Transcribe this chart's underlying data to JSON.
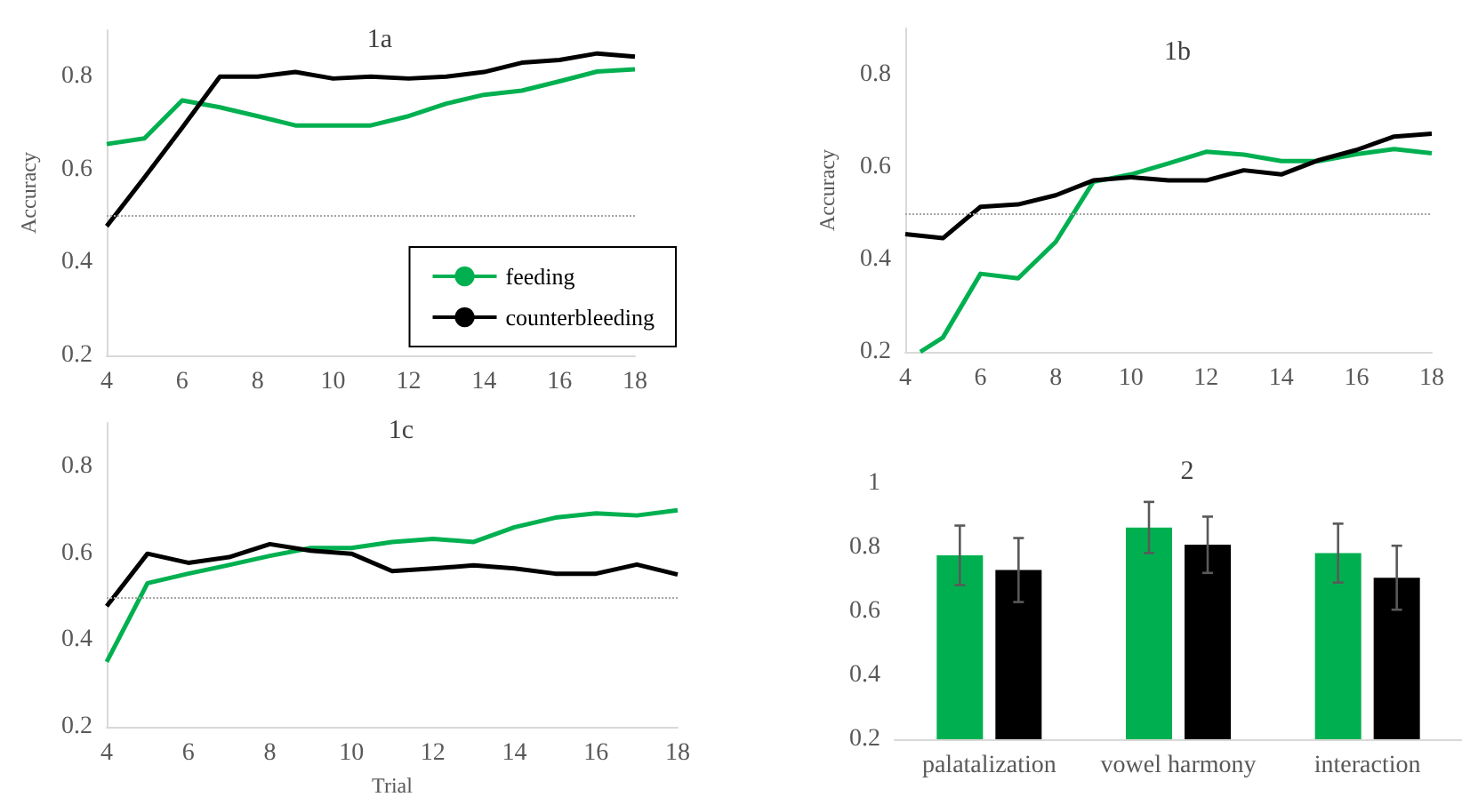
{
  "chart_data": [
    {
      "type": "line",
      "title": "1a",
      "ylabel": "Accuracy",
      "x": [
        4,
        5,
        6,
        7,
        8,
        9,
        10,
        11,
        12,
        13,
        14,
        15,
        16,
        17,
        18
      ],
      "xlim": [
        4,
        18
      ],
      "xticks": [
        4,
        6,
        8,
        10,
        12,
        14,
        16,
        18
      ],
      "ylim": [
        0.2,
        0.9
      ],
      "yticks": [
        0.2,
        0.4,
        0.6,
        0.8
      ],
      "grid": false,
      "legend": "bottom right",
      "marker": "none",
      "line_style": "solid",
      "ref_lines": [
        {
          "axis": "y",
          "value": 0.5,
          "color": "#a6a6a6",
          "line_style": "dotted"
        }
      ],
      "series": [
        {
          "name": "feeding",
          "color": "#00b050",
          "values": [
            0.655,
            0.667,
            0.749,
            0.734,
            0.715,
            0.695,
            0.695,
            0.695,
            0.715,
            0.742,
            0.761,
            0.77,
            0.79,
            0.811,
            0.816
          ]
        },
        {
          "name": "counterbleeding",
          "color": "#000000",
          "values": [
            0.478,
            0.583,
            0.69,
            0.8,
            0.8,
            0.81,
            0.796,
            0.8,
            0.796,
            0.8,
            0.81,
            0.83,
            0.836,
            0.85,
            0.843
          ]
        }
      ]
    },
    {
      "type": "line",
      "title": "1b",
      "ylabel": "Accuracy",
      "x": [
        4,
        5,
        6,
        7,
        8,
        9,
        10,
        11,
        12,
        13,
        14,
        15,
        16,
        17,
        18
      ],
      "xlim": [
        4,
        18
      ],
      "xticks": [
        4,
        6,
        8,
        10,
        12,
        14,
        16,
        18
      ],
      "ylim": [
        0.2,
        0.9
      ],
      "yticks": [
        0.2,
        0.4,
        0.6,
        0.8
      ],
      "grid": false,
      "marker": "none",
      "line_style": "solid",
      "ref_lines": [
        {
          "axis": "y",
          "value": 0.5,
          "color": "#a6a6a6",
          "line_style": "dotted"
        }
      ],
      "series": [
        {
          "color": "#00b050",
          "x": [
            4.4,
            5,
            6,
            7,
            8,
            9,
            10,
            11,
            12,
            13,
            14,
            15,
            16,
            17,
            18
          ],
          "values": [
            0.2,
            0.231,
            0.369,
            0.359,
            0.438,
            0.568,
            0.584,
            0.608,
            0.633,
            0.627,
            0.613,
            0.613,
            0.628,
            0.639,
            0.63
          ]
        },
        {
          "color": "#000000",
          "values": [
            0.455,
            0.446,
            0.514,
            0.519,
            0.539,
            0.571,
            0.578,
            0.571,
            0.571,
            0.593,
            0.584,
            0.615,
            0.637,
            0.666,
            0.672
          ]
        }
      ]
    },
    {
      "type": "line",
      "title": "1c",
      "xlabel": "Trial",
      "x": [
        4,
        5,
        6,
        7,
        8,
        9,
        10,
        11,
        12,
        13,
        14,
        15,
        16,
        17,
        18
      ],
      "xlim": [
        4,
        18
      ],
      "xticks": [
        4,
        6,
        8,
        10,
        12,
        14,
        16,
        18
      ],
      "ylim": [
        0.2,
        0.9
      ],
      "yticks": [
        0.2,
        0.4,
        0.6,
        0.8
      ],
      "grid": false,
      "marker": "none",
      "line_style": "solid",
      "ref_lines": [
        {
          "axis": "y",
          "value": 0.5,
          "color": "#a6a6a6",
          "line_style": "dotted"
        }
      ],
      "series": [
        {
          "color": "#00b050",
          "values": [
            0.35,
            0.531,
            0.553,
            0.573,
            0.594,
            0.612,
            0.612,
            0.626,
            0.633,
            0.626,
            0.66,
            0.682,
            0.692,
            0.687,
            0.699
          ]
        },
        {
          "color": "#000000",
          "values": [
            0.478,
            0.599,
            0.578,
            0.591,
            0.621,
            0.606,
            0.599,
            0.559,
            0.565,
            0.572,
            0.565,
            0.553,
            0.553,
            0.574,
            0.551
          ]
        }
      ]
    },
    {
      "type": "bar",
      "title": "2",
      "categories": [
        "palatalization",
        "vowel harmony",
        "interaction"
      ],
      "ylim": [
        0.2,
        1
      ],
      "yticks": [
        0.2,
        0.4,
        0.6,
        0.8,
        1
      ],
      "grid": false,
      "series": [
        {
          "color": "#00b050",
          "values": [
            0.775,
            0.862,
            0.782
          ],
          "errors": [
            0.093,
            0.08,
            0.092
          ]
        },
        {
          "color": "#000000",
          "values": [
            0.729,
            0.808,
            0.705
          ],
          "errors": [
            0.1,
            0.088,
            0.1
          ]
        }
      ]
    }
  ]
}
